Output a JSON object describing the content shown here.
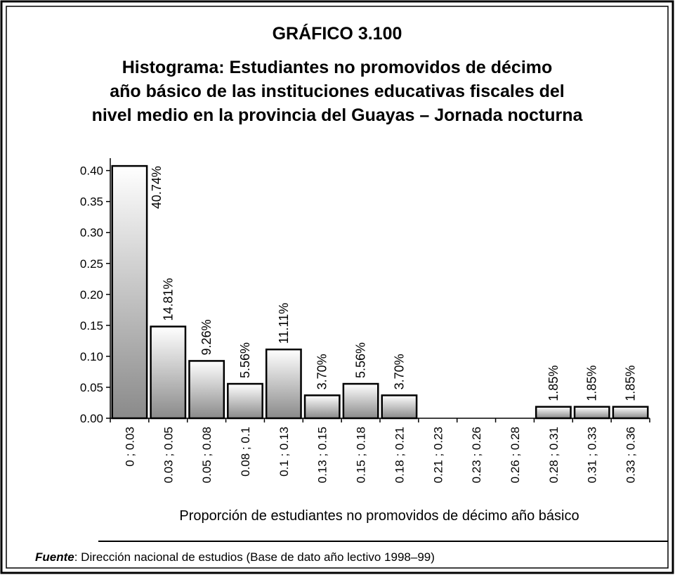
{
  "chart_data": {
    "type": "bar",
    "title": "GRÁFICO 3.100",
    "subtitle": [
      "Histograma: Estudiantes no promovidos de décimo",
      "año básico de  las instituciones educativas fiscales del",
      "nivel medio en la provincia del Guayas – Jornada nocturna"
    ],
    "x_label": "Proporción de estudiantes no promovidos de décimo año básico",
    "categories": [
      "0 ; 0.03",
      "0.03 ; 0.05",
      "0.05 ; 0.08",
      "0.08 ; 0.1",
      "0.1 ; 0.13",
      "0.13 ; 0.15",
      "0.15 ; 0.18",
      "0.18 ; 0.21",
      "0.21 ; 0.23",
      "0.23 ; 0.26",
      "0.26 ; 0.28",
      "0.28 ; 0.31",
      "0.31 ; 0.33",
      "0.33 ; 0.36"
    ],
    "values": [
      0.4074,
      0.1481,
      0.0926,
      0.0556,
      0.1111,
      0.037,
      0.0556,
      0.037,
      0,
      0,
      0,
      0.0185,
      0.0185,
      0.0185
    ],
    "value_labels": [
      "40.74%",
      "14.81%",
      "9.26%",
      "5.56%",
      "11.11%",
      "3.70%",
      "5.56%",
      "3.70%",
      null,
      null,
      null,
      "1.85%",
      "1.85%",
      "1.85%"
    ],
    "ylim": [
      0,
      0.42
    ],
    "yticks": [
      {
        "value": 0,
        "label": "0.00"
      },
      {
        "value": 0.05,
        "label": "0.05"
      },
      {
        "value": 0.1,
        "label": "0.10"
      },
      {
        "value": 0.15,
        "label": "0.15"
      },
      {
        "value": 0.2,
        "label": "0.20"
      },
      {
        "value": 0.25,
        "label": "0.25"
      },
      {
        "value": 0.3,
        "label": "0.30"
      },
      {
        "value": 0.35,
        "label": "0.35"
      },
      {
        "value": 0.4,
        "label": "0.40"
      }
    ],
    "source_label": "Fuente",
    "source_text": ": Dirección nacional de estudios (Base de dato año lectivo 1998–99)"
  }
}
